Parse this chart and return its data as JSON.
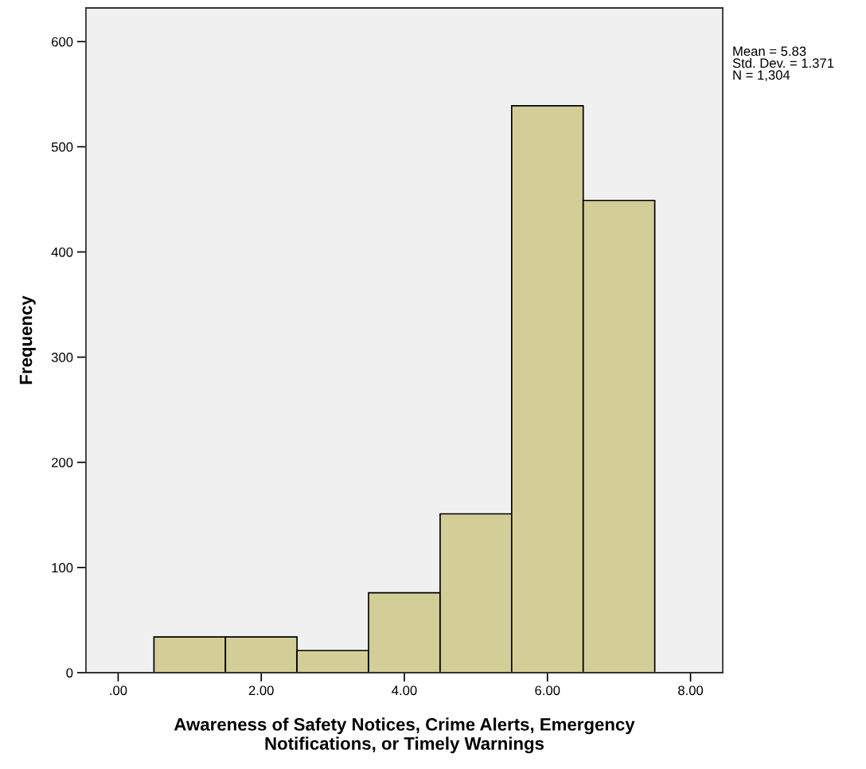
{
  "chart_data": {
    "type": "histogram",
    "xlabel": "Awareness of Safety Notices, Crime Alerts, Emergency\nNotifications, or Timely Warnings",
    "ylabel": "Frequency",
    "bins": [
      0.5,
      1.5,
      2.5,
      3.5,
      4.5,
      5.5,
      6.5,
      7.5
    ],
    "values": [
      34,
      34,
      21,
      76,
      151,
      539,
      449
    ],
    "color": "#d3ce97",
    "xlim": [
      -0.45,
      8.45
    ],
    "xticks": [
      {
        "value": 0,
        "label": ".00"
      },
      {
        "value": 2,
        "label": "2.00"
      },
      {
        "value": 4,
        "label": "4.00"
      },
      {
        "value": 6,
        "label": "6.00"
      },
      {
        "value": 8,
        "label": "8.00"
      }
    ],
    "ylim": [
      0,
      632
    ],
    "yticks": [
      0,
      100,
      200,
      300,
      400,
      500,
      600
    ],
    "annotations": [
      "Mean = 5.83\nStd. Dev. = 1.371\nN = 1,304"
    ]
  }
}
